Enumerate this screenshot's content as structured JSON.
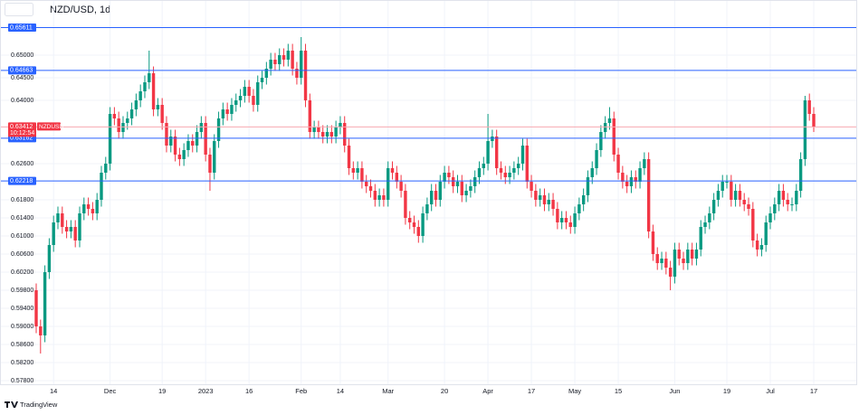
{
  "chart_data": {
    "type": "candlestick",
    "title": "NZD/USD, 1d",
    "symbol": "NZDUSD",
    "countdown": "10:12:54",
    "footer": "TradingView",
    "up_color": "#089981",
    "down_color": "#f23645",
    "level_color": "#2962ff",
    "grid": true,
    "categories": [
      null,
      null,
      null,
      null,
      "14",
      null,
      null,
      null,
      null,
      null,
      null,
      null,
      null,
      null,
      null,
      null,
      null,
      "Dec",
      null,
      null,
      null,
      null,
      null,
      null,
      null,
      null,
      null,
      null,
      null,
      "19",
      null,
      null,
      null,
      null,
      null,
      null,
      null,
      null,
      null,
      "2023",
      null,
      null,
      null,
      null,
      null,
      null,
      null,
      null,
      null,
      "16",
      null,
      null,
      null,
      null,
      null,
      null,
      null,
      null,
      null,
      null,
      null,
      "Feb",
      null,
      null,
      null,
      null,
      null,
      null,
      null,
      null,
      "14",
      null,
      null,
      null,
      null,
      null,
      null,
      null,
      null,
      null,
      null,
      "Mar",
      null,
      null,
      null,
      null,
      null,
      null,
      null,
      null,
      null,
      null,
      null,
      null,
      "20",
      null,
      null,
      null,
      null,
      null,
      null,
      null,
      null,
      null,
      "Apr",
      null,
      null,
      null,
      null,
      null,
      null,
      null,
      null,
      null,
      "17",
      null,
      null,
      null,
      null,
      null,
      null,
      null,
      null,
      null,
      "May",
      null,
      null,
      null,
      null,
      null,
      null,
      null,
      null,
      null,
      "15",
      null,
      null,
      null,
      null,
      null,
      null,
      null,
      null,
      null,
      null,
      null,
      null,
      "Jun",
      null,
      null,
      null,
      null,
      null,
      null,
      null,
      null,
      null,
      null,
      null,
      "19",
      null,
      null,
      null,
      null,
      null,
      null,
      null,
      null,
      null,
      "Jul",
      null,
      null,
      null,
      null,
      null,
      null,
      null,
      null,
      null,
      "17"
    ],
    "open": [
      0.598,
      0.59,
      0.588,
      0.602,
      0.608,
      0.613,
      0.615,
      0.612,
      0.611,
      0.612,
      0.609,
      0.615,
      0.617,
      0.616,
      0.615,
      0.618,
      0.624,
      0.626,
      0.637,
      0.636,
      0.633,
      0.635,
      0.636,
      0.638,
      0.64,
      0.642,
      0.644,
      0.646,
      0.638,
      0.639,
      0.635,
      0.63,
      0.632,
      0.628,
      0.627,
      0.629,
      0.631,
      0.63,
      0.633,
      0.635,
      0.628,
      0.624,
      0.631,
      0.636,
      0.638,
      0.637,
      0.639,
      0.64,
      0.641,
      0.643,
      0.641,
      0.639,
      0.644,
      0.645,
      0.647,
      0.649,
      0.648,
      0.65,
      0.649,
      0.651,
      0.647,
      0.645,
      0.651,
      0.64,
      0.633,
      0.634,
      0.633,
      0.632,
      0.633,
      0.632,
      0.634,
      0.635,
      0.63,
      0.625,
      0.624,
      0.625,
      0.622,
      0.621,
      0.62,
      0.618,
      0.619,
      0.618,
      0.625,
      0.624,
      0.622,
      0.62,
      0.614,
      0.613,
      0.612,
      0.61,
      0.615,
      0.617,
      0.62,
      0.618,
      0.622,
      0.624,
      0.623,
      0.621,
      0.622,
      0.619,
      0.62,
      0.621,
      0.623,
      0.625,
      0.626,
      0.631,
      0.632,
      0.625,
      0.624,
      0.623,
      0.624,
      0.625,
      0.626,
      0.63,
      0.622,
      0.62,
      0.618,
      0.619,
      0.617,
      0.618,
      0.616,
      0.613,
      0.614,
      0.613,
      0.612,
      0.615,
      0.617,
      0.619,
      0.623,
      0.625,
      0.629,
      0.633,
      0.635,
      0.636,
      0.628,
      0.624,
      0.622,
      0.621,
      0.623,
      0.622,
      0.625,
      0.627,
      0.611,
      0.606,
      0.604,
      0.605,
      0.603,
      0.601,
      0.607,
      0.605,
      0.604,
      0.607,
      0.605,
      0.607,
      0.612,
      0.613,
      0.615,
      0.618,
      0.62,
      0.622,
      0.622,
      0.618,
      0.62,
      0.618,
      0.617,
      0.616,
      0.609,
      0.607,
      0.608,
      0.613,
      0.615,
      0.617,
      0.62,
      0.618,
      0.617,
      0.617,
      0.62,
      0.627,
      0.64,
      0.637
    ],
    "high": [
      0.5995,
      0.5915,
      0.6035,
      0.6095,
      0.6145,
      0.6165,
      0.6165,
      0.6135,
      0.6135,
      0.6135,
      0.6165,
      0.6185,
      0.6185,
      0.6175,
      0.6195,
      0.6255,
      0.6275,
      0.6385,
      0.6385,
      0.6375,
      0.6365,
      0.6375,
      0.6395,
      0.6415,
      0.6435,
      0.6455,
      0.651,
      0.6475,
      0.6405,
      0.6405,
      0.6365,
      0.6335,
      0.6335,
      0.6295,
      0.6305,
      0.6325,
      0.6325,
      0.6345,
      0.6365,
      0.6365,
      0.6295,
      0.6325,
      0.6375,
      0.6395,
      0.6395,
      0.6405,
      0.6415,
      0.6425,
      0.6445,
      0.6445,
      0.6425,
      0.6455,
      0.6465,
      0.6485,
      0.6505,
      0.6505,
      0.6515,
      0.6515,
      0.6525,
      0.6525,
      0.6485,
      0.654,
      0.6525,
      0.6415,
      0.6355,
      0.6355,
      0.6345,
      0.6345,
      0.6345,
      0.6355,
      0.6365,
      0.6365,
      0.6315,
      0.6265,
      0.6265,
      0.6265,
      0.6235,
      0.6225,
      0.6215,
      0.6205,
      0.6205,
      0.6265,
      0.6265,
      0.6255,
      0.6235,
      0.6215,
      0.6155,
      0.6145,
      0.6135,
      0.6165,
      0.6185,
      0.6215,
      0.6215,
      0.6235,
      0.6255,
      0.6255,
      0.6245,
      0.6235,
      0.6235,
      0.6215,
      0.6225,
      0.6245,
      0.6265,
      0.6275,
      0.637,
      0.6335,
      0.6335,
      0.6265,
      0.6255,
      0.6255,
      0.6265,
      0.6275,
      0.6315,
      0.6315,
      0.6235,
      0.6215,
      0.6205,
      0.6205,
      0.6195,
      0.6195,
      0.6175,
      0.6155,
      0.6155,
      0.6145,
      0.6165,
      0.6185,
      0.6205,
      0.6245,
      0.6265,
      0.6305,
      0.6345,
      0.6365,
      0.6385,
      0.6375,
      0.6295,
      0.6255,
      0.6235,
      0.6245,
      0.6245,
      0.6265,
      0.6285,
      0.6285,
      0.6125,
      0.6075,
      0.6065,
      0.6065,
      0.6045,
      0.6085,
      0.6085,
      0.6065,
      0.6085,
      0.6085,
      0.6085,
      0.6135,
      0.6145,
      0.6165,
      0.6195,
      0.6215,
      0.6235,
      0.6235,
      0.6235,
      0.6215,
      0.6215,
      0.6195,
      0.6185,
      0.6175,
      0.6105,
      0.6095,
      0.6145,
      0.6165,
      0.6185,
      0.6215,
      0.6215,
      0.6195,
      0.6185,
      0.6215,
      0.6285,
      0.641,
      0.6415,
      0.6385
    ],
    "low": [
      0.5885,
      0.584,
      0.5865,
      0.6005,
      0.6065,
      0.6115,
      0.6105,
      0.6095,
      0.6095,
      0.6075,
      0.6075,
      0.6135,
      0.6145,
      0.6135,
      0.6135,
      0.6165,
      0.6225,
      0.6245,
      0.6345,
      0.6315,
      0.6315,
      0.6335,
      0.6345,
      0.6365,
      0.6385,
      0.6405,
      0.6425,
      0.6365,
      0.6365,
      0.6335,
      0.6285,
      0.6285,
      0.6265,
      0.6255,
      0.6255,
      0.6275,
      0.6285,
      0.6285,
      0.6315,
      0.6265,
      0.62,
      0.6225,
      0.6295,
      0.6345,
      0.6355,
      0.6355,
      0.6375,
      0.6385,
      0.6395,
      0.6395,
      0.6375,
      0.6375,
      0.6425,
      0.6435,
      0.6455,
      0.6465,
      0.6465,
      0.6475,
      0.6475,
      0.6455,
      0.6435,
      0.6435,
      0.6385,
      0.6315,
      0.6315,
      0.6315,
      0.6305,
      0.6305,
      0.6305,
      0.6305,
      0.6325,
      0.6285,
      0.6235,
      0.6225,
      0.6225,
      0.6205,
      0.6195,
      0.6185,
      0.6165,
      0.6165,
      0.6165,
      0.6165,
      0.6225,
      0.6205,
      0.6185,
      0.6125,
      0.6115,
      0.6105,
      0.6085,
      0.6085,
      0.6135,
      0.6155,
      0.6165,
      0.6165,
      0.6205,
      0.6215,
      0.6195,
      0.6195,
      0.6175,
      0.6175,
      0.6185,
      0.6195,
      0.6215,
      0.6235,
      0.6245,
      0.6295,
      0.6235,
      0.6225,
      0.6215,
      0.6215,
      0.6225,
      0.6235,
      0.6245,
      0.6205,
      0.6185,
      0.6165,
      0.6165,
      0.6155,
      0.6155,
      0.6145,
      0.6115,
      0.6115,
      0.6115,
      0.6105,
      0.6105,
      0.6135,
      0.6155,
      0.6175,
      0.6215,
      0.6235,
      0.6275,
      0.6315,
      0.6335,
      0.6265,
      0.6225,
      0.6205,
      0.6195,
      0.6195,
      0.6205,
      0.6205,
      0.6235,
      0.6095,
      0.6045,
      0.6025,
      0.6025,
      0.6015,
      0.598,
      0.5995,
      0.6035,
      0.6025,
      0.6025,
      0.6035,
      0.6035,
      0.6055,
      0.6105,
      0.6115,
      0.6135,
      0.6165,
      0.6185,
      0.6205,
      0.6165,
      0.6165,
      0.6165,
      0.6155,
      0.6145,
      0.6075,
      0.6055,
      0.6055,
      0.6065,
      0.6115,
      0.6135,
      0.6155,
      0.6165,
      0.6155,
      0.6155,
      0.6155,
      0.6185,
      0.6255,
      0.6355,
      0.633
    ],
    "close": [
      0.59,
      0.588,
      0.602,
      0.608,
      0.613,
      0.615,
      0.612,
      0.611,
      0.612,
      0.609,
      0.615,
      0.617,
      0.616,
      0.615,
      0.618,
      0.624,
      0.626,
      0.637,
      0.636,
      0.633,
      0.635,
      0.636,
      0.638,
      0.64,
      0.642,
      0.644,
      0.646,
      0.638,
      0.639,
      0.635,
      0.63,
      0.632,
      0.628,
      0.627,
      0.629,
      0.631,
      0.63,
      0.633,
      0.635,
      0.628,
      0.624,
      0.631,
      0.636,
      0.638,
      0.637,
      0.639,
      0.64,
      0.641,
      0.643,
      0.641,
      0.639,
      0.644,
      0.645,
      0.647,
      0.649,
      0.648,
      0.65,
      0.649,
      0.651,
      0.647,
      0.645,
      0.651,
      0.64,
      0.633,
      0.634,
      0.633,
      0.632,
      0.633,
      0.632,
      0.634,
      0.635,
      0.63,
      0.625,
      0.624,
      0.625,
      0.622,
      0.621,
      0.62,
      0.618,
      0.619,
      0.618,
      0.625,
      0.624,
      0.622,
      0.62,
      0.614,
      0.613,
      0.612,
      0.61,
      0.615,
      0.617,
      0.62,
      0.618,
      0.622,
      0.624,
      0.623,
      0.621,
      0.622,
      0.619,
      0.62,
      0.621,
      0.623,
      0.625,
      0.626,
      0.631,
      0.632,
      0.625,
      0.624,
      0.623,
      0.624,
      0.625,
      0.626,
      0.63,
      0.622,
      0.62,
      0.618,
      0.619,
      0.617,
      0.618,
      0.616,
      0.613,
      0.614,
      0.613,
      0.612,
      0.615,
      0.617,
      0.619,
      0.623,
      0.625,
      0.629,
      0.633,
      0.635,
      0.636,
      0.628,
      0.624,
      0.622,
      0.621,
      0.623,
      0.622,
      0.625,
      0.627,
      0.611,
      0.606,
      0.604,
      0.605,
      0.603,
      0.601,
      0.607,
      0.605,
      0.604,
      0.607,
      0.605,
      0.607,
      0.612,
      0.613,
      0.615,
      0.618,
      0.62,
      0.622,
      0.622,
      0.618,
      0.62,
      0.618,
      0.617,
      0.616,
      0.609,
      0.607,
      0.608,
      0.613,
      0.615,
      0.617,
      0.62,
      0.618,
      0.617,
      0.617,
      0.62,
      0.627,
      0.64,
      0.637,
      0.63412
    ],
    "ylim": [
      0.5772,
      0.6582
    ],
    "yticks": [
      {
        "value": 0.65,
        "label": "0.65000"
      },
      {
        "value": 0.645,
        "label": "0.64500"
      },
      {
        "value": 0.64,
        "label": "0.64000"
      },
      {
        "value": 0.626,
        "label": "0.62600"
      },
      {
        "value": 0.618,
        "label": "0.61800"
      },
      {
        "value": 0.614,
        "label": "0.61400"
      },
      {
        "value": 0.61,
        "label": "0.61000"
      },
      {
        "value": 0.606,
        "label": "0.60600"
      },
      {
        "value": 0.602,
        "label": "0.60200"
      },
      {
        "value": 0.598,
        "label": "0.59800"
      },
      {
        "value": 0.594,
        "label": "0.59400"
      },
      {
        "value": 0.59,
        "label": "0.59000"
      },
      {
        "value": 0.586,
        "label": "0.58600"
      },
      {
        "value": 0.582,
        "label": "0.58200"
      },
      {
        "value": 0.578,
        "label": "0.57800"
      }
    ],
    "levels": [
      {
        "value": 0.65611,
        "label": "0.65611"
      },
      {
        "value": 0.64663,
        "label": "0.64663"
      },
      {
        "value": 0.63162,
        "label": "0.63162"
      },
      {
        "value": 0.62218,
        "label": "0.62218"
      }
    ],
    "last_price": {
      "value": 0.63412,
      "label": "0.63412"
    }
  }
}
